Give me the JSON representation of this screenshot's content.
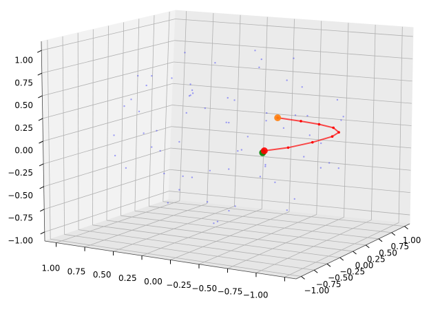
{
  "chart_data": {
    "type": "scatter3d",
    "xlim": [
      -1.1,
      1.1
    ],
    "ylim": [
      -1.1,
      1.1
    ],
    "zlim": [
      -1.1,
      1.1
    ],
    "xticks": [
      {
        "value": 1,
        "label": "1.00"
      },
      {
        "value": 0.75,
        "label": "0.75"
      },
      {
        "value": 0.5,
        "label": "0.50"
      },
      {
        "value": 0.25,
        "label": "0.25"
      },
      {
        "value": 0,
        "label": "0.00"
      },
      {
        "value": -0.25,
        "label": "−0.25"
      },
      {
        "value": -0.5,
        "label": "−0.50"
      },
      {
        "value": -0.75,
        "label": "−0.75"
      },
      {
        "value": -1,
        "label": "−1.00"
      }
    ],
    "yticks": [
      {
        "value": -1,
        "label": "−1.00"
      },
      {
        "value": -0.75,
        "label": "−0.75"
      },
      {
        "value": -0.5,
        "label": "−0.50"
      },
      {
        "value": -0.25,
        "label": "−0.25"
      },
      {
        "value": 0,
        "label": "0.00"
      },
      {
        "value": 0.25,
        "label": "0.25"
      },
      {
        "value": 0.5,
        "label": "0.50"
      },
      {
        "value": 0.75,
        "label": "0.75"
      },
      {
        "value": 1,
        "label": "1.00"
      }
    ],
    "zticks": [
      {
        "value": -1,
        "label": "−1.00"
      },
      {
        "value": -0.75,
        "label": "−0.75"
      },
      {
        "value": -0.5,
        "label": "−0.50"
      },
      {
        "value": -0.25,
        "label": "−0.25"
      },
      {
        "value": 0,
        "label": "0.00"
      },
      {
        "value": 0.25,
        "label": "0.25"
      },
      {
        "value": 0.5,
        "label": "0.50"
      },
      {
        "value": 0.75,
        "label": "0.75"
      },
      {
        "value": 1,
        "label": "1.00"
      }
    ],
    "grid": true,
    "series": [
      {
        "mode": "points",
        "color": "#0000ff",
        "x": [
          0.12,
          -0.71,
          0.54,
          -0.23,
          0.81,
          -0.05,
          0.42,
          -0.58,
          0.27,
          -0.88,
          0.63,
          -0.31,
          0.09,
          0.74,
          -0.44,
          0.35,
          -0.67,
          0.18,
          -0.15,
          0.91,
          -0.39,
          0.57,
          -0.82,
          0.05,
          -0.26,
          0.48,
          -0.61,
          0.21,
          0.68,
          -0.12,
          0.38,
          -0.73,
          0.15,
          -0.47,
          0.86,
          -0.02,
          0.29,
          -0.91,
          0.52,
          -0.33,
          0.11,
          -0.56,
          0.71,
          -0.19,
          0.44,
          -0.64,
          0.23,
          -0.08,
          0.61,
          -0.36,
          0.33,
          -0.79,
          0.02,
          0.77,
          -0.52,
          0.41,
          -0.28,
          0.56,
          -0.69,
          0.19,
          -0.45,
          0.93,
          -0.14,
          0.36,
          -0.84,
          0.07,
          -0.37,
          0.66,
          -0.24,
          0.48
        ],
        "y": [
          -0.45,
          0.22,
          0.61,
          -0.82,
          -0.15,
          0.34,
          -0.27,
          -0.49,
          0.85,
          -0.12,
          0.08,
          0.67,
          -0.11,
          -0.58,
          0.15,
          0.41,
          -0.71,
          -0.93,
          0.52,
          0.26,
          -0.24,
          -0.71,
          0.41,
          0.08,
          -0.55,
          0.22,
          0.58,
          -0.35,
          0.62,
          0.93,
          -0.05,
          -0.31,
          0.44,
          0.09,
          -0.33,
          -0.68,
          0.18,
          0.14,
          -0.44,
          0.78,
          -0.62,
          -0.15,
          0.35,
          0.26,
          0.81,
          -0.62,
          -0.21,
          -0.39,
          -0.18,
          0.42,
          0.64,
          0.36,
          -0.87,
          0.12,
          -0.83,
          -0.78,
          0.05,
          0.44,
          0.63,
          0.31,
          -0.36,
          -0.04,
          -0.19,
          -0.52,
          -0.28,
          0.68,
          -0.66,
          -0.32,
          0.86,
          0.05
        ],
        "z": [
          0.63,
          -0.31,
          0.12,
          -0.18,
          0.33,
          0.88,
          -0.74,
          0.41,
          -0.22,
          0.05,
          -0.52,
          0.44,
          -0.95,
          0.02,
          -0.79,
          0.69,
          -0.08,
          0.21,
          -0.61,
          -0.14,
          0.83,
          -0.29,
          0.22,
          0.12,
          -0.66,
          0.34,
          -0.35,
          0.29,
          0.25,
          0.05,
          0.88,
          -0.52,
          -0.28,
          0.64,
          -0.27,
          0.59,
          -0.81,
          -0.27,
          0.57,
          -0.12,
          -0.33,
          0.18,
          0.49,
          -0.37,
          0.21,
          0.36,
          0.51,
          -0.84,
          -0.17,
          0.81,
          -0.55,
          0.41,
          -0.41,
          0.55,
          0.08,
          0.36,
          -0.13,
          -0.63,
          0.12,
          0.06,
          -0.31,
          0.22,
          0.44,
          -0.11,
          0.37,
          0.71,
          -0.57,
          0.64,
          -0.39,
          -0.14
        ]
      },
      {
        "mode": "line",
        "color": "#ff0000",
        "x": [
          -0.36,
          -0.5,
          -0.62,
          -0.7,
          -0.7,
          -0.66,
          -0.58,
          -0.48,
          -0.34
        ],
        "y": [
          -0.1,
          0.05,
          0.25,
          0.45,
          0.57,
          0.55,
          0.45,
          0.32,
          0.18
        ],
        "z": [
          -0.1,
          -0.08,
          -0.05,
          -0.02,
          0,
          0.05,
          0.1,
          0.15,
          0.2
        ]
      },
      {
        "mode": "marker",
        "color": "#ff7f0e",
        "x": [
          -0.34
        ],
        "y": [
          0.18
        ],
        "z": [
          0.2
        ]
      },
      {
        "mode": "marker",
        "color": "#008000",
        "x": [
          -0.35
        ],
        "y": [
          -0.11
        ],
        "z": [
          -0.12
        ]
      },
      {
        "mode": "marker",
        "color": "#ff0000",
        "x": [
          -0.36
        ],
        "y": [
          -0.1
        ],
        "z": [
          -0.1
        ]
      }
    ]
  }
}
